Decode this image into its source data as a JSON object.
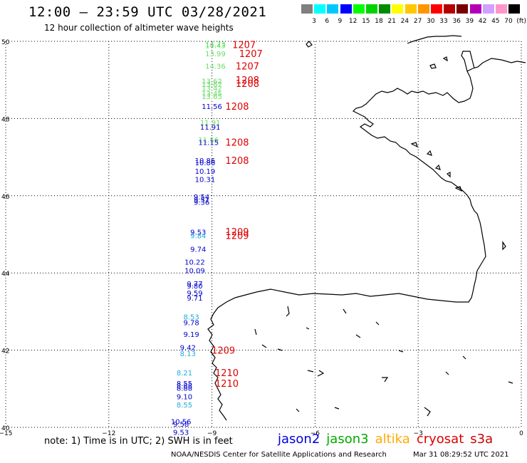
{
  "header": {
    "title": "12:00 – 23:59 UTC 03/28/2021",
    "subtitle": "12 hour collection of altimeter wave heights"
  },
  "colorscale": {
    "unit": "(ft)",
    "colors": [
      "#808080",
      "#00ffff",
      "#00c8ff",
      "#0000ff",
      "#00ff00",
      "#00d200",
      "#008c00",
      "#ffff00",
      "#ffc800",
      "#ff9600",
      "#ff0000",
      "#b40000",
      "#780000",
      "#b400b4",
      "#d2a0ff",
      "#ff96c8",
      "#000000"
    ],
    "labels": [
      "3",
      "6",
      "9",
      "12",
      "15",
      "18",
      "21",
      "24",
      "27",
      "30",
      "33",
      "36",
      "39",
      "42",
      "45",
      "70"
    ]
  },
  "axes": {
    "lon_ticks": [
      "−15",
      "−12",
      "−9",
      "−6",
      "−3",
      "0"
    ],
    "lat_ticks": [
      "50",
      "48",
      "46",
      "44",
      "42",
      "40"
    ]
  },
  "observations": [
    {
      "lon": -8.9,
      "lat": 49.94,
      "label": "14.73",
      "color": "#66dd66"
    },
    {
      "lon": -8.9,
      "lat": 49.9,
      "label": "14.43",
      "color": "#66dd66"
    },
    {
      "lon": -8.9,
      "lat": 49.69,
      "label": "13.99",
      "color": "#66dd66"
    },
    {
      "lon": -8.9,
      "lat": 49.36,
      "label": "14.36",
      "color": "#66dd66"
    },
    {
      "lon": -9.0,
      "lat": 48.98,
      "label": "13.62",
      "color": "#66dd66"
    },
    {
      "lon": -9.0,
      "lat": 48.89,
      "label": "13.67",
      "color": "#66dd66"
    },
    {
      "lon": -9.0,
      "lat": 48.79,
      "label": "13.42",
      "color": "#66dd66"
    },
    {
      "lon": -9.0,
      "lat": 48.65,
      "label": "13.45",
      "color": "#66dd66"
    },
    {
      "lon": -9.0,
      "lat": 48.58,
      "label": "13.65",
      "color": "#66dd66"
    },
    {
      "lon": -9.0,
      "lat": 48.32,
      "label": "11.56",
      "color": "#0000cc"
    },
    {
      "lon": -9.05,
      "lat": 47.91,
      "label": "11.91",
      "color": "#66dd66"
    },
    {
      "lon": -9.05,
      "lat": 47.79,
      "label": "11.91",
      "color": "#0000cc"
    },
    {
      "lon": -9.1,
      "lat": 47.45,
      "label": "11.56",
      "color": "#66dd66"
    },
    {
      "lon": -9.1,
      "lat": 47.39,
      "label": "11.15",
      "color": "#0000cc"
    },
    {
      "lon": -9.2,
      "lat": 46.92,
      "label": "10.86",
      "color": "#0000cc"
    },
    {
      "lon": -9.2,
      "lat": 46.86,
      "label": "10.86",
      "color": "#0000cc"
    },
    {
      "lon": -9.2,
      "lat": 46.64,
      "label": "10.19",
      "color": "#0000cc"
    },
    {
      "lon": -9.2,
      "lat": 46.43,
      "label": "10.31",
      "color": "#0000cc"
    },
    {
      "lon": -9.3,
      "lat": 45.98,
      "label": "9.54",
      "color": "#0000cc"
    },
    {
      "lon": -9.3,
      "lat": 45.9,
      "label": "9.51",
      "color": "#0000cc"
    },
    {
      "lon": -9.3,
      "lat": 45.84,
      "label": "9.36",
      "color": "#0000cc"
    },
    {
      "lon": -9.4,
      "lat": 45.06,
      "label": "9.53",
      "color": "#0000cc"
    },
    {
      "lon": -9.4,
      "lat": 44.97,
      "label": "9.84",
      "color": "#22aadd"
    },
    {
      "lon": -9.4,
      "lat": 44.62,
      "label": "9.74",
      "color": "#0000cc"
    },
    {
      "lon": -9.5,
      "lat": 44.29,
      "label": "10.22",
      "color": "#0000cc"
    },
    {
      "lon": -9.5,
      "lat": 44.07,
      "label": "10.09",
      "color": "#0000cc"
    },
    {
      "lon": -9.5,
      "lat": 43.73,
      "label": "9.77",
      "color": "#0000cc"
    },
    {
      "lon": -9.5,
      "lat": 43.67,
      "label": "9.80",
      "color": "#0000cc"
    },
    {
      "lon": -9.5,
      "lat": 43.49,
      "label": "9.59",
      "color": "#0000cc"
    },
    {
      "lon": -9.5,
      "lat": 43.36,
      "label": "9.71",
      "color": "#0000cc"
    },
    {
      "lon": -9.6,
      "lat": 42.87,
      "label": "8.53",
      "color": "#22aadd"
    },
    {
      "lon": -9.6,
      "lat": 42.72,
      "label": "9.78",
      "color": "#0000cc"
    },
    {
      "lon": -9.6,
      "lat": 42.42,
      "label": "9.19",
      "color": "#0000cc"
    },
    {
      "lon": -9.7,
      "lat": 42.08,
      "label": "9.42",
      "color": "#0000cc"
    },
    {
      "lon": -9.7,
      "lat": 41.92,
      "label": "8.13",
      "color": "#22aadd"
    },
    {
      "lon": -9.8,
      "lat": 41.42,
      "label": "8.21",
      "color": "#22aadd"
    },
    {
      "lon": -9.8,
      "lat": 41.14,
      "label": "8.55",
      "color": "#0000cc"
    },
    {
      "lon": -9.8,
      "lat": 41.08,
      "label": "8.88",
      "color": "#0000cc"
    },
    {
      "lon": -9.8,
      "lat": 41.02,
      "label": "8.88",
      "color": "#0000cc"
    },
    {
      "lon": -9.8,
      "lat": 40.8,
      "label": "9.10",
      "color": "#0000cc"
    },
    {
      "lon": -9.8,
      "lat": 40.59,
      "label": "8.55",
      "color": "#22aadd"
    },
    {
      "lon": -9.9,
      "lat": 40.16,
      "label": "10.56",
      "color": "#0000cc"
    },
    {
      "lon": -9.9,
      "lat": 40.09,
      "label": "9.58",
      "color": "#0000cc"
    },
    {
      "lon": -9.9,
      "lat": 39.88,
      "label": "9.53",
      "color": "#0000cc"
    }
  ],
  "passes": [
    {
      "lon": -8.7,
      "lat": 49.92,
      "label": "1207"
    },
    {
      "lon": -8.5,
      "lat": 49.69,
      "label": "1207"
    },
    {
      "lon": -8.6,
      "lat": 49.36,
      "label": "1207"
    },
    {
      "lon": -8.6,
      "lat": 49.0,
      "label": "1208"
    },
    {
      "lon": -8.6,
      "lat": 48.91,
      "label": "1208"
    },
    {
      "lon": -8.9,
      "lat": 48.32,
      "label": "1208"
    },
    {
      "lon": -8.9,
      "lat": 47.39,
      "label": "1208"
    },
    {
      "lon": -8.9,
      "lat": 46.92,
      "label": "1208"
    },
    {
      "lon": -8.9,
      "lat": 45.07,
      "label": "1209"
    },
    {
      "lon": -8.9,
      "lat": 44.97,
      "label": "1209"
    },
    {
      "lon": -9.3,
      "lat": 42.0,
      "label": "1209"
    },
    {
      "lon": -9.2,
      "lat": 41.42,
      "label": "1210"
    },
    {
      "lon": -9.2,
      "lat": 41.14,
      "label": "1210"
    }
  ],
  "footer": {
    "note": "note: 1) Time is in UTC; 2) SWH is in feet",
    "satellites": [
      {
        "name": "jason2",
        "color": "#0000dd"
      },
      {
        "name": "jason3",
        "color": "#00aa00"
      },
      {
        "name": "altika",
        "color": "#ffaa00"
      },
      {
        "name": "cryosat",
        "color": "#dd0000"
      },
      {
        "name": "s3a",
        "color": "#cc0000"
      }
    ],
    "credit": "NOAA/NESDIS Center for Satellite Applications and Research",
    "timestamp": "Mar 31 08:29:52 UTC 2021"
  }
}
